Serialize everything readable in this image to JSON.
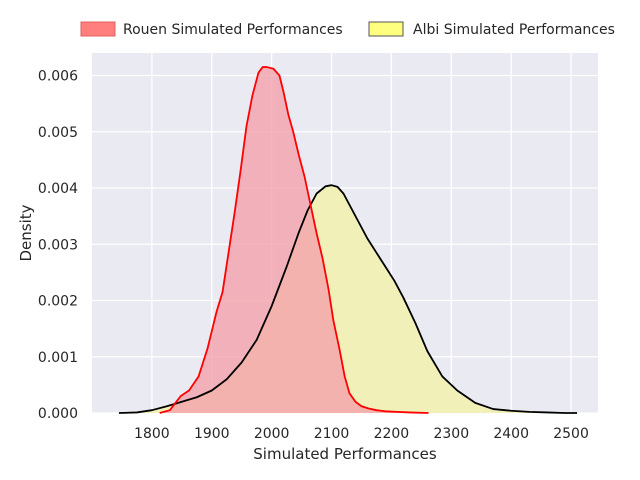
{
  "chart_data": {
    "type": "area",
    "title": "",
    "xlabel": "Simulated Performances",
    "ylabel": "Density",
    "xlim": [
      1700,
      2545
    ],
    "ylim": [
      0,
      0.0064
    ],
    "xticks": [
      1800,
      1900,
      2000,
      2100,
      2200,
      2300,
      2400,
      2500
    ],
    "yticks": [
      0.0,
      0.001,
      0.002,
      0.003,
      0.004,
      0.005,
      0.006
    ],
    "ytick_labels": [
      "0.000",
      "0.001",
      "0.002",
      "0.003",
      "0.004",
      "0.005",
      "0.006"
    ],
    "grid": true,
    "legend": {
      "placement": "top-center-outside",
      "ncol": 2
    },
    "series": [
      {
        "name": "Rouen Simulated Performances",
        "fill_color": "#f4a3ab",
        "legend_color": "#ff7f7f",
        "line_color": "#ff0000",
        "x": [
          1813,
          1830,
          1848,
          1862,
          1878,
          1893,
          1908,
          1918,
          1928,
          1938,
          1948,
          1958,
          1968,
          1978,
          1985,
          1992,
          2003,
          2013,
          2020,
          2028,
          2036,
          2045,
          2055,
          2065,
          2075,
          2085,
          2095,
          2103,
          2113,
          2122,
          2130,
          2140,
          2150,
          2162,
          2175,
          2190,
          2210,
          2230,
          2262
        ],
        "y": [
          0.0,
          5e-05,
          0.0003,
          0.0004,
          0.00065,
          0.00115,
          0.0018,
          0.00215,
          0.00285,
          0.00355,
          0.0043,
          0.0051,
          0.00565,
          0.00605,
          0.00615,
          0.00615,
          0.00612,
          0.006,
          0.0057,
          0.0053,
          0.005,
          0.0046,
          0.0042,
          0.0037,
          0.0032,
          0.00275,
          0.0022,
          0.00165,
          0.00115,
          0.00065,
          0.00035,
          0.0002,
          0.00012,
          8e-05,
          5e-05,
          3e-05,
          2e-05,
          1e-05,
          0.0
        ]
      },
      {
        "name": "Albi Simulated Performances",
        "fill_color": "#f0f0b8",
        "legend_color": "#ffff7f",
        "line_color": "#000000",
        "x": [
          1745,
          1775,
          1800,
          1825,
          1850,
          1875,
          1900,
          1925,
          1950,
          1975,
          2000,
          2025,
          2045,
          2060,
          2075,
          2090,
          2100,
          2110,
          2120,
          2130,
          2145,
          2160,
          2175,
          2190,
          2205,
          2220,
          2240,
          2260,
          2285,
          2310,
          2340,
          2370,
          2400,
          2430,
          2460,
          2490,
          2510
        ],
        "y": [
          0.0,
          1e-05,
          5e-05,
          0.00012,
          0.0002,
          0.00028,
          0.0004,
          0.0006,
          0.0009,
          0.0013,
          0.0019,
          0.0026,
          0.0032,
          0.0036,
          0.0039,
          0.00403,
          0.00405,
          0.00402,
          0.0039,
          0.0037,
          0.0034,
          0.0031,
          0.00285,
          0.0026,
          0.00235,
          0.00205,
          0.0016,
          0.0011,
          0.00065,
          0.0004,
          0.00018,
          7e-05,
          4e-05,
          2e-05,
          1e-05,
          0.0,
          0.0
        ]
      }
    ]
  }
}
